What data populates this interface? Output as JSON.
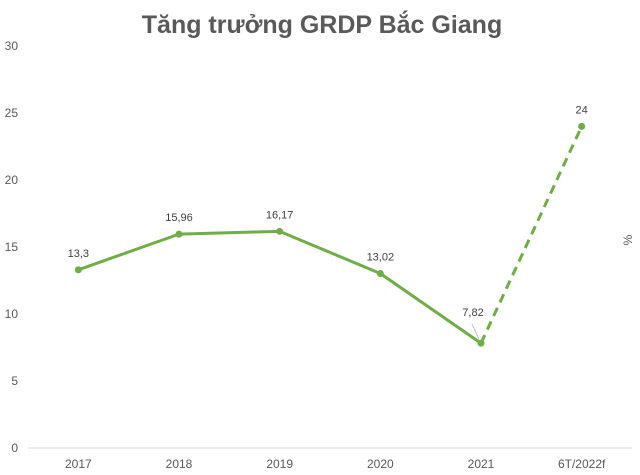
{
  "chart_data": {
    "type": "line",
    "title": "Tăng trưởng GRDP Bắc Giang",
    "xlabel": "",
    "ylabel": "%",
    "categories": [
      "2017",
      "2018",
      "2019",
      "2020",
      "2021",
      "6T/2022f"
    ],
    "series": [
      {
        "values": [
          13.3,
          15.96,
          16.17,
          13.02,
          7.82,
          24
        ],
        "data_labels": [
          "13,3",
          "15,96",
          "16,17",
          "13,02",
          "7,82",
          "24"
        ],
        "color": "#70ad47",
        "forecast_from_index": 4
      }
    ],
    "ylim": [
      0,
      30
    ],
    "yticks": [
      0,
      5,
      10,
      15,
      20,
      25,
      30
    ],
    "grid": false,
    "legend": "none"
  }
}
